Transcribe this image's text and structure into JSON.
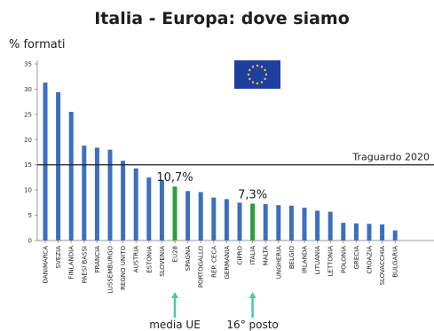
{
  "chart_data": {
    "type": "bar",
    "title": "Italia - Europa: dove siamo",
    "ylabel": "% formati",
    "xlabel": "",
    "ylim": [
      0,
      35
    ],
    "yticks": [
      0,
      5,
      10,
      15,
      20,
      25,
      30,
      35
    ],
    "grid": false,
    "categories": [
      "DANIMARCA",
      "SVEZIA",
      "FINLANDIA",
      "PAESI BASSI",
      "FRANCIA",
      "LUSSEMBURGO",
      "REGNO UNITO",
      "AUSTRIA",
      "ESTONIA",
      "SLOVENIA",
      "EU28",
      "SPAGNA",
      "PORTOGALLO",
      "REP. CECA",
      "GERMANIA",
      "CIPRO",
      "ITALIA",
      "MALTA",
      "UNGHERIA",
      "BELGIO",
      "IRLANDA",
      "LITUANIA",
      "LETTONIA",
      "POLONIA",
      "GRECIA",
      "CROAZIA",
      "SLOVACCHIA",
      "BULGARIA"
    ],
    "values": [
      31.3,
      29.4,
      25.5,
      18.8,
      18.4,
      18.0,
      15.8,
      14.3,
      12.5,
      12.0,
      10.7,
      9.8,
      9.6,
      8.5,
      8.2,
      7.5,
      7.3,
      7.2,
      7.0,
      6.9,
      6.5,
      5.9,
      5.7,
      3.5,
      3.4,
      3.3,
      3.2,
      2.0
    ],
    "colors": {
      "default": "#3d6fbf",
      "highlight": "#2e9e3e",
      "target_line": "#1e1e1e",
      "arrow": "#4fc7a4"
    },
    "highlight": [
      "EU28",
      "ITALIA"
    ],
    "target_value": 15,
    "target_label": "Traguardo 2020",
    "annotations": [
      {
        "category": "EU28",
        "value_label": "10,7%",
        "caption": "media UE"
      },
      {
        "category": "ITALIA",
        "value_label": "7,3%",
        "caption": "16° posto"
      }
    ],
    "flag_icon": "eu-flag-icon"
  }
}
